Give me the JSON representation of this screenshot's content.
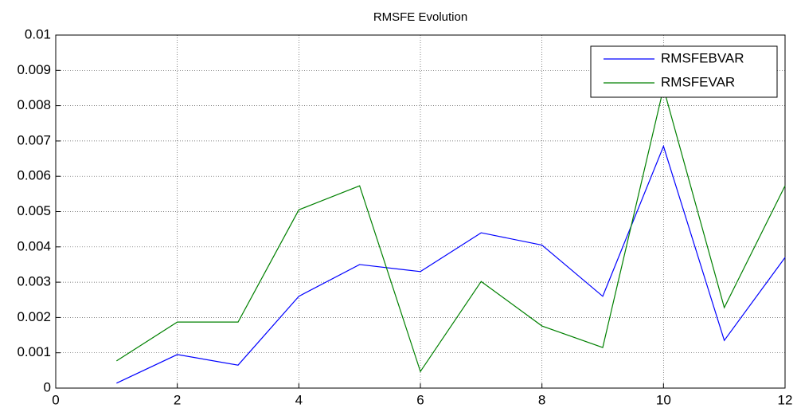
{
  "chart_data": {
    "type": "line",
    "title": "RMSFE Evolution",
    "x": [
      1,
      2,
      3,
      4,
      5,
      6,
      7,
      8,
      9,
      10,
      11,
      12
    ],
    "series": [
      {
        "name": "RMSFEBVAR",
        "color": "#0000ff",
        "values": [
          0.00014,
          0.00095,
          0.00065,
          0.0026,
          0.0035,
          0.0033,
          0.0044,
          0.00405,
          0.0026,
          0.00685,
          0.00135,
          0.0037
        ]
      },
      {
        "name": "RMSFEVAR",
        "color": "#008000",
        "values": [
          0.00077,
          0.00187,
          0.00187,
          0.00505,
          0.00573,
          0.00047,
          0.00302,
          0.00176,
          0.00115,
          0.0085,
          0.00228,
          0.00573
        ]
      }
    ],
    "xlim": [
      0,
      12
    ],
    "xticks": [
      0,
      2,
      4,
      6,
      8,
      10,
      12
    ],
    "ylim": [
      0,
      0.01
    ],
    "yticks": [
      0,
      0.001,
      0.002,
      0.003,
      0.004,
      0.005,
      0.006,
      0.007,
      0.008,
      0.009,
      0.01
    ],
    "grid": true,
    "legend": "northeast"
  }
}
